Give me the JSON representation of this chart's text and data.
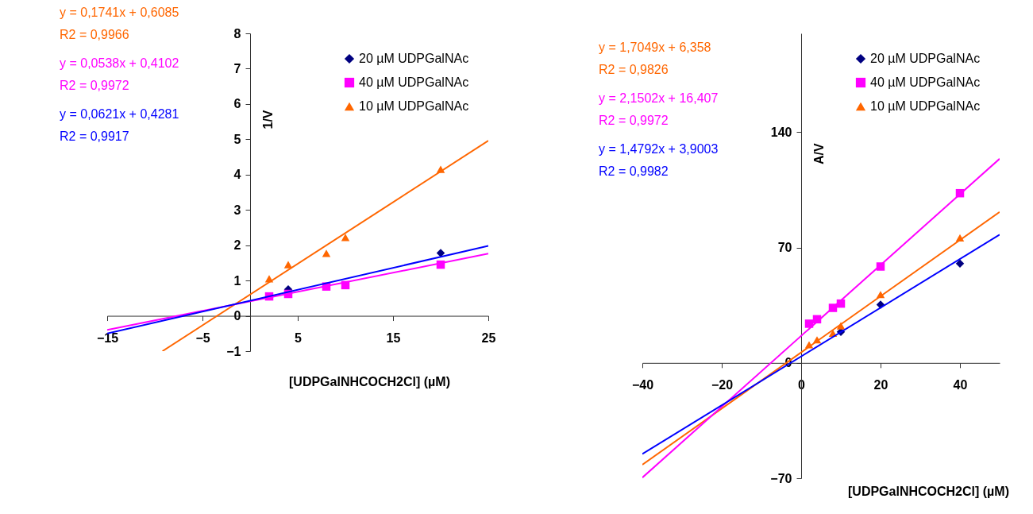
{
  "chart_data": [
    {
      "type": "scatter",
      "xlabel": "[UDPGalNHCOCH2Cl]  (µM)",
      "ylabel": "1/V",
      "xlim": [
        -15,
        25
      ],
      "ylim": [
        -1,
        8
      ],
      "xticks": [
        -15,
        -5,
        5,
        15,
        25
      ],
      "yticks": [
        -1,
        0,
        1,
        2,
        3,
        4,
        5,
        6,
        7,
        8
      ],
      "legend": "top right",
      "grid": false,
      "annotations": [
        "y = 0,1741x + 0,6085",
        "R2 = 0,9966",
        "y = 0,0538x + 0,4102",
        "R2 = 0,9972",
        "y = 0,0621x + 0,4281",
        "R2 = 0,9917"
      ],
      "series": [
        {
          "name": "20 µM UDPGalNAc",
          "color": "#000080",
          "marker": "diamond",
          "x": [
            4,
            20
          ],
          "values": [
            0.75,
            1.78
          ]
        },
        {
          "name": "40 µM UDPGalNAc",
          "color": "#ff00ff",
          "marker": "square",
          "x": [
            2,
            4,
            8,
            10,
            20
          ],
          "values": [
            0.55,
            0.62,
            0.83,
            0.87,
            1.45
          ]
        },
        {
          "name": "10 µM UDPGalNAc",
          "color": "#ff6600",
          "marker": "triangle",
          "x": [
            2,
            4,
            8,
            10,
            20
          ],
          "values": [
            1.05,
            1.45,
            1.77,
            2.22,
            4.15
          ]
        },
        {
          "type": "line",
          "color": "#ff6600",
          "x": [
            -9.2,
            25
          ],
          "values": [
            -1.0,
            4.96
          ]
        },
        {
          "type": "line",
          "color": "#ff00ff",
          "x": [
            -15,
            25
          ],
          "values": [
            -0.4,
            1.76
          ]
        },
        {
          "type": "line",
          "color": "#0000ff",
          "x": [
            -15,
            25
          ],
          "values": [
            -0.5,
            1.98
          ]
        }
      ]
    },
    {
      "type": "scatter",
      "xlabel": "[UDPGalNHCOCH2Cl]  (µM)",
      "ylabel": "A/V",
      "xlim": [
        -40,
        50
      ],
      "ylim": [
        -70,
        200
      ],
      "xticks": [
        -40,
        -20,
        0,
        20,
        40
      ],
      "yticks": [
        -70,
        0,
        70,
        140
      ],
      "legend": "top right",
      "grid": false,
      "annotations": [
        "y = 1,7049x + 6,358",
        "R2 = 0,9826",
        "y = 2,1502x + 16,407",
        "R2 = 0,9972",
        "y = 1,4792x + 3,9003",
        "R2 = 0,9982"
      ],
      "series": [
        {
          "name": "20 µM UDPGalNAc",
          "color": "#000080",
          "marker": "diamond",
          "x": [
            10,
            20,
            40
          ],
          "values": [
            18.8,
            35.3,
            60.3
          ]
        },
        {
          "name": "40 µM UDPGalNAc",
          "color": "#ff00ff",
          "marker": "square",
          "x": [
            2,
            4,
            8,
            10,
            20,
            40
          ],
          "values": [
            23.8,
            26.5,
            33.4,
            36,
            58.5,
            103
          ]
        },
        {
          "name": "10 µM UDPGalNAc",
          "color": "#ff6600",
          "marker": "triangle",
          "x": [
            2,
            4,
            8,
            10,
            20,
            40
          ],
          "values": [
            11,
            14,
            18,
            22.5,
            41.5,
            75.9
          ]
        },
        {
          "type": "line",
          "color": "#ff6600",
          "x": [
            -40,
            50
          ],
          "values": [
            -61.8,
            91.6
          ]
        },
        {
          "type": "line",
          "color": "#ff00ff",
          "x": [
            -40,
            50
          ],
          "values": [
            -69.6,
            123.9
          ]
        },
        {
          "type": "line",
          "color": "#0000ff",
          "x": [
            -40,
            50
          ],
          "values": [
            -55.3,
            77.9
          ]
        }
      ]
    }
  ]
}
